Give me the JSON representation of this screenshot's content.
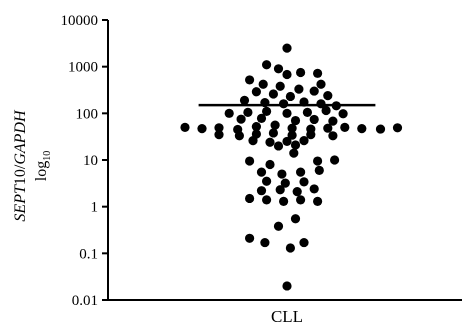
{
  "chart_data": {
    "type": "scatter",
    "y_scale": "log",
    "ylim": [
      0.01,
      10000
    ],
    "y_ticks": [
      "0.01",
      "0.1",
      "1",
      "10",
      "100",
      "1000",
      "10000"
    ],
    "y_tick_values": [
      0.01,
      0.1,
      1,
      10,
      100,
      1000,
      10000
    ],
    "categories": [
      "CLL"
    ],
    "ylabel": {
      "part1": "SEPT",
      "part2": "10/",
      "part3": "GAPDH",
      "unit_base": "log",
      "unit_sub": "10"
    },
    "grid": false,
    "legend": "none",
    "mean_line_value": 150,
    "mean_line_half_width": 0.52,
    "point_color": "#000000",
    "points": [
      {
        "offset": 0.0,
        "value": 2500
      },
      {
        "offset": -0.12,
        "value": 1100
      },
      {
        "offset": -0.05,
        "value": 900
      },
      {
        "offset": 0.08,
        "value": 750
      },
      {
        "offset": 0.18,
        "value": 720
      },
      {
        "offset": 0.0,
        "value": 680
      },
      {
        "offset": -0.22,
        "value": 520
      },
      {
        "offset": -0.14,
        "value": 420
      },
      {
        "offset": -0.04,
        "value": 380
      },
      {
        "offset": 0.2,
        "value": 420
      },
      {
        "offset": 0.07,
        "value": 330
      },
      {
        "offset": 0.16,
        "value": 300
      },
      {
        "offset": -0.18,
        "value": 290
      },
      {
        "offset": -0.08,
        "value": 260
      },
      {
        "offset": 0.24,
        "value": 240
      },
      {
        "offset": 0.02,
        "value": 230
      },
      {
        "offset": -0.25,
        "value": 190
      },
      {
        "offset": -0.13,
        "value": 170
      },
      {
        "offset": -0.02,
        "value": 160
      },
      {
        "offset": 0.1,
        "value": 175
      },
      {
        "offset": 0.2,
        "value": 160
      },
      {
        "offset": 0.29,
        "value": 145
      },
      {
        "offset": -0.34,
        "value": 100
      },
      {
        "offset": -0.23,
        "value": 105
      },
      {
        "offset": -0.12,
        "value": 110
      },
      {
        "offset": 0.0,
        "value": 100
      },
      {
        "offset": 0.12,
        "value": 105
      },
      {
        "offset": 0.23,
        "value": 115
      },
      {
        "offset": 0.33,
        "value": 98
      },
      {
        "offset": -0.27,
        "value": 75
      },
      {
        "offset": -0.15,
        "value": 78
      },
      {
        "offset": 0.05,
        "value": 70
      },
      {
        "offset": 0.16,
        "value": 74
      },
      {
        "offset": 0.27,
        "value": 68
      },
      {
        "offset": -0.6,
        "value": 50
      },
      {
        "offset": -0.5,
        "value": 47
      },
      {
        "offset": -0.4,
        "value": 49
      },
      {
        "offset": -0.29,
        "value": 45
      },
      {
        "offset": -0.18,
        "value": 52
      },
      {
        "offset": -0.07,
        "value": 56
      },
      {
        "offset": 0.03,
        "value": 48
      },
      {
        "offset": 0.14,
        "value": 46
      },
      {
        "offset": 0.24,
        "value": 48
      },
      {
        "offset": 0.34,
        "value": 50
      },
      {
        "offset": 0.44,
        "value": 47
      },
      {
        "offset": 0.55,
        "value": 46
      },
      {
        "offset": 0.65,
        "value": 49
      },
      {
        "offset": -0.4,
        "value": 35
      },
      {
        "offset": -0.28,
        "value": 33
      },
      {
        "offset": -0.18,
        "value": 36
      },
      {
        "offset": -0.08,
        "value": 38
      },
      {
        "offset": 0.03,
        "value": 34
      },
      {
        "offset": 0.14,
        "value": 35
      },
      {
        "offset": 0.27,
        "value": 33
      },
      {
        "offset": -0.2,
        "value": 26
      },
      {
        "offset": -0.1,
        "value": 24
      },
      {
        "offset": 0.0,
        "value": 25
      },
      {
        "offset": 0.1,
        "value": 26
      },
      {
        "offset": -0.05,
        "value": 20
      },
      {
        "offset": 0.05,
        "value": 21
      },
      {
        "offset": 0.04,
        "value": 14
      },
      {
        "offset": -0.22,
        "value": 9.5
      },
      {
        "offset": -0.1,
        "value": 8.0
      },
      {
        "offset": 0.18,
        "value": 9.5
      },
      {
        "offset": 0.28,
        "value": 10
      },
      {
        "offset": -0.15,
        "value": 5.5
      },
      {
        "offset": -0.03,
        "value": 5.0
      },
      {
        "offset": 0.08,
        "value": 5.5
      },
      {
        "offset": 0.19,
        "value": 6.0
      },
      {
        "offset": -0.12,
        "value": 3.5
      },
      {
        "offset": -0.01,
        "value": 3.2
      },
      {
        "offset": 0.1,
        "value": 3.4
      },
      {
        "offset": -0.15,
        "value": 2.2
      },
      {
        "offset": -0.04,
        "value": 2.3
      },
      {
        "offset": 0.06,
        "value": 2.1
      },
      {
        "offset": 0.16,
        "value": 2.4
      },
      {
        "offset": -0.22,
        "value": 1.5
      },
      {
        "offset": -0.12,
        "value": 1.4
      },
      {
        "offset": -0.02,
        "value": 1.3
      },
      {
        "offset": 0.08,
        "value": 1.4
      },
      {
        "offset": 0.18,
        "value": 1.3
      },
      {
        "offset": 0.05,
        "value": 0.55
      },
      {
        "offset": -0.05,
        "value": 0.38
      },
      {
        "offset": -0.22,
        "value": 0.21
      },
      {
        "offset": -0.13,
        "value": 0.17
      },
      {
        "offset": 0.1,
        "value": 0.17
      },
      {
        "offset": 0.02,
        "value": 0.13
      },
      {
        "offset": 0.0,
        "value": 0.02
      }
    ]
  }
}
